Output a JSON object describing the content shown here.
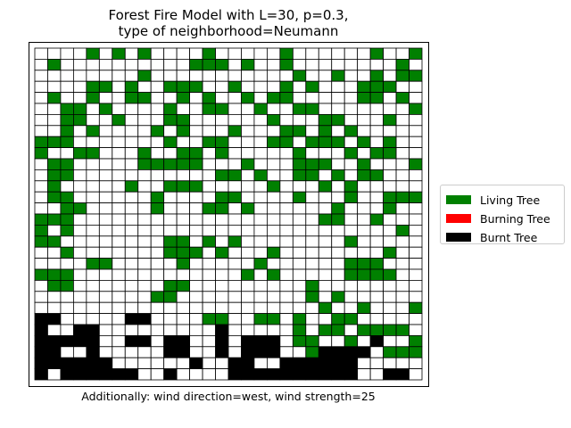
{
  "title_line1": "Forest Fire Model with L=30, p=0.3,",
  "title_line2": "type of neighborhood=Neumann",
  "caption": "Additionally: wind direction=west, wind strength=25",
  "legend": [
    {
      "label": "Living Tree",
      "color": "#008000"
    },
    {
      "label": "Burning Tree",
      "color": "#ff0000"
    },
    {
      "label": "Burnt Tree",
      "color": "#000000"
    }
  ],
  "chart_data": {
    "type": "heatmap",
    "grid_size": 30,
    "encoding": {
      ".": "empty",
      "G": "Living Tree",
      "B": "Burnt Tree"
    },
    "colors": {
      "empty": "#ffffff",
      "G": "#008000",
      "R": "#ff0000",
      "B": "#000000"
    },
    "grid_lines": true,
    "legend_position": "right",
    "rows": [
      "....G.G.G....G.....G......G..G",
      ".G..........GGG.G..G........G.",
      "........G...........G..G..G.GG",
      "....GG.G..GGG..G...G.G...GGG..",
      ".G..G..GG..G.G..G.GG.....GG.G.",
      "..GG.G....G..GG..G..GG.......G",
      "..GG..G...GG......G...GG...G..",
      "..G.G....G.G...G...GG.G.G.....",
      "GGG.......G..GG...GG.GGG.G.G..",
      "G..GG...G..GG.G.....G...G.GG..",
      ".GG.....GGGGG...G...GGG..G...G",
      ".GG...........GG.G..GG.G.GG...",
      ".G.....G..GGG.....G...G.G.....",
      ".GG......G....GG....G...G..GGG",
      "..GG.....G...GG.G......G...G..",
      "GGG...................GG..G...",
      "G.G.........................G.",
      "GG........GG.G.G........G.....",
      "..G.......GGG.G...G........G..",
      "....GG.....G.....G......GGG...",
      "GGG.............G.G.....GGGG..",
      ".GG.......GG.........G........",
      ".........GG..........G.G......",
      "......................G..G...G",
      "BB.....BB....GG..GG.G..GG.....",
      "B..BB.........B.....G.GG.GGGG.",
      "BBBBB..BB.BB..B.BBB.GG..G.B..G",
      "BB..B.....BB..B.BBB..GBBBB.GGG",
      "BBBBBB......B..BB..BBBBBB.....",
      "B.BBBBBB..B....BBBBBBBBBB..BB."
    ]
  }
}
